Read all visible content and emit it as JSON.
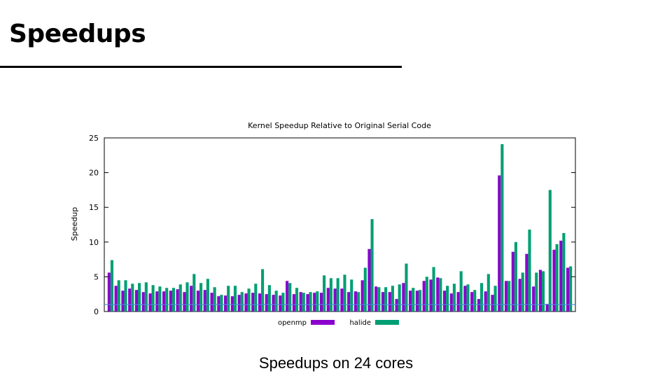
{
  "slide": {
    "title": "Speedups",
    "caption": "Speedups on 24 cores"
  },
  "colors": {
    "openmp": "#8a00cc",
    "halide": "#009e73",
    "baseline": "#4a8ad8",
    "axis": "#000000",
    "text": "#000000"
  },
  "chart_data": {
    "type": "bar",
    "title": "Kernel Speedup Relative to Original Serial Code",
    "xlabel": "",
    "ylabel": "Speedup",
    "ylim": [
      0,
      25
    ],
    "yticks": [
      0,
      5,
      10,
      15,
      20,
      25
    ],
    "grid": false,
    "legend_position": "bottom",
    "reference_line": 1,
    "series": [
      {
        "name": "openmp",
        "values": [
          5.6,
          3.7,
          3.0,
          3.3,
          3.1,
          2.8,
          2.6,
          2.9,
          2.9,
          3.0,
          3.2,
          2.8,
          3.7,
          3.0,
          3.1,
          2.7,
          2.2,
          2.3,
          2.2,
          2.4,
          2.6,
          2.7,
          2.6,
          2.5,
          2.4,
          2.3,
          4.4,
          2.5,
          2.8,
          2.5,
          2.7,
          2.7,
          3.4,
          3.3,
          3.3,
          2.8,
          2.9,
          4.5,
          9.0,
          3.6,
          2.8,
          2.8,
          1.8,
          4.1,
          3.0,
          3.0,
          4.4,
          4.6,
          4.9,
          3.0,
          2.6,
          2.8,
          3.7,
          2.8,
          1.8,
          2.9,
          2.4,
          19.6,
          4.4,
          8.6,
          4.7,
          8.3,
          3.6,
          6.0,
          1.1,
          8.9,
          10.2,
          6.3
        ]
      },
      {
        "name": "halide",
        "values": [
          7.4,
          4.5,
          4.5,
          4.0,
          4.1,
          4.2,
          3.8,
          3.6,
          3.4,
          3.4,
          3.9,
          4.2,
          5.4,
          4.1,
          4.7,
          3.5,
          2.4,
          3.7,
          3.7,
          2.8,
          3.3,
          4.0,
          6.1,
          3.8,
          3.0,
          2.7,
          4.1,
          3.4,
          2.7,
          2.8,
          2.9,
          5.2,
          4.8,
          4.8,
          5.3,
          4.6,
          2.8,
          6.3,
          13.3,
          3.5,
          3.5,
          3.7,
          3.9,
          6.9,
          3.4,
          3.1,
          5.0,
          6.4,
          4.8,
          3.7,
          4.0,
          5.8,
          3.9,
          3.1,
          4.1,
          5.4,
          3.7,
          24.1,
          4.4,
          10.0,
          5.6,
          11.8,
          5.6,
          5.8,
          17.5,
          9.7,
          11.3,
          6.5
        ]
      }
    ]
  }
}
